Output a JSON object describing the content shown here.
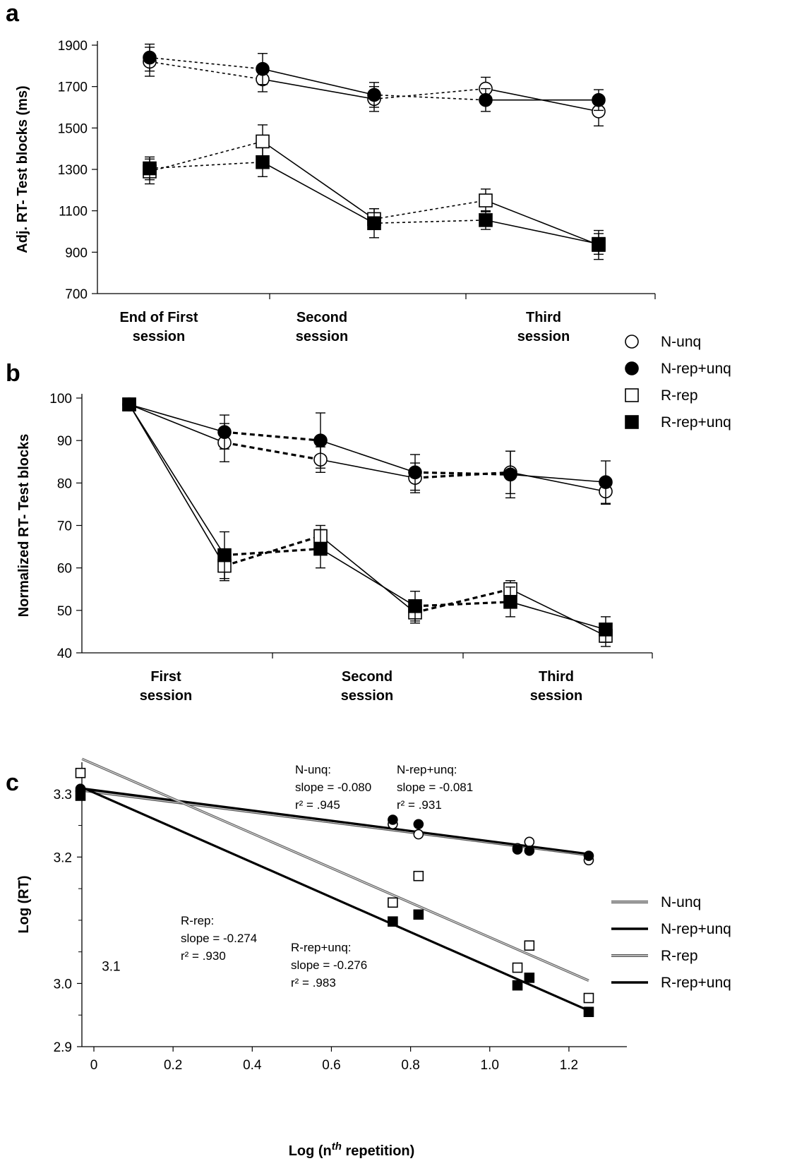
{
  "figure": {
    "panel_a_letter": "a",
    "panel_b_letter": "b",
    "panel_c_letter": "c"
  },
  "legend_ab": [
    {
      "name": "N-unq",
      "marker": "circle",
      "filled": false
    },
    {
      "name": "N-rep+unq",
      "marker": "circle",
      "filled": true
    },
    {
      "name": "R-rep",
      "marker": "square",
      "filled": false
    },
    {
      "name": "R-rep+unq",
      "marker": "square",
      "filled": true
    }
  ],
  "legend_c": [
    {
      "name": "N-unq",
      "style": "double-thin"
    },
    {
      "name": "N-rep+unq",
      "style": "solid-thick"
    },
    {
      "name": "R-rep",
      "style": "double"
    },
    {
      "name": "R-rep+unq",
      "style": "solid-thick"
    }
  ],
  "chart_data": [
    {
      "type": "line",
      "panel": "a",
      "ylabel": "Adj. RT- Test blocks  (ms)",
      "ylim": [
        700,
        1900
      ],
      "yticks": [
        700,
        900,
        1100,
        1300,
        1500,
        1700,
        1900
      ],
      "sessions": [
        "End of First\nsession",
        "Second\nsession",
        "Third\nsession"
      ],
      "series": [
        {
          "name": "N-unq",
          "marker": "circle",
          "filled": false,
          "values": [
            1820,
            1735,
            1640,
            1690,
            1580
          ],
          "err": [
            70,
            60,
            60,
            55,
            70
          ]
        },
        {
          "name": "N-rep+unq",
          "marker": "circle",
          "filled": true,
          "values": [
            1840,
            1785,
            1660,
            1635,
            1635
          ],
          "err": [
            65,
            75,
            60,
            55,
            50
          ]
        },
        {
          "name": "R-rep",
          "marker": "square",
          "filled": false,
          "values": [
            1290,
            1435,
            1060,
            1150,
            935
          ],
          "err": [
            60,
            80,
            50,
            55,
            70
          ]
        },
        {
          "name": "R-rep+unq",
          "marker": "square",
          "filled": true,
          "values": [
            1305,
            1335,
            1040,
            1055,
            940
          ],
          "err": [
            55,
            70,
            70,
            45,
            50
          ]
        }
      ]
    },
    {
      "type": "line",
      "panel": "b",
      "ylabel": "Normalized RT- Test blocks",
      "ylim": [
        40,
        100
      ],
      "yticks": [
        40,
        50,
        60,
        70,
        80,
        90,
        100
      ],
      "sessions": [
        "First\nsession",
        "Second\nsession",
        "Third\nsession"
      ],
      "series": [
        {
          "name": "N-unq",
          "marker": "circle",
          "filled": false,
          "values": [
            98.5,
            89.5,
            85.5,
            81.2,
            82.5,
            78
          ],
          "err": [
            0,
            4.5,
            3,
            3.5,
            5,
            3
          ]
        },
        {
          "name": "N-rep+unq",
          "marker": "circle",
          "filled": true,
          "values": [
            98.5,
            92,
            90,
            82.5,
            82,
            80.2
          ],
          "err": [
            0,
            4,
            6.5,
            4.2,
            5.5,
            5
          ]
        },
        {
          "name": "R-rep",
          "marker": "square",
          "filled": false,
          "values": [
            98.5,
            60.5,
            67.5,
            49.5,
            55,
            44
          ],
          "err": [
            0,
            3.5,
            2.5,
            2.5,
            2,
            2.5
          ]
        },
        {
          "name": "R-rep+unq",
          "marker": "square",
          "filled": true,
          "values": [
            98.5,
            63,
            64.5,
            51,
            52,
            45.5
          ],
          "err": [
            0,
            5.5,
            4.5,
            3.5,
            3.5,
            3
          ]
        }
      ]
    },
    {
      "type": "scatter",
      "panel": "c",
      "xlabel": "Log (n",
      "xlabel_sup": "th",
      "xlabel_end": " repetition)",
      "ylabel": "Log (RT)",
      "xlim": [
        -0.03,
        1.35
      ],
      "ylim": [
        2.9,
        3.35
      ],
      "xticks": [
        0,
        0.2,
        0.4,
        0.6,
        0.8,
        1.0,
        1.2
      ],
      "xtick_labels": [
        "0",
        "0.2",
        "0.4",
        "0.6",
        "0.8",
        "1.0",
        "1.2"
      ],
      "yticks_labeled": [
        2.9,
        3.0,
        3.2,
        3.3
      ],
      "ytick_labels": [
        "2.9",
        "3.0",
        "3.2",
        "3.3"
      ],
      "yticks_minor": [
        2.95,
        3.05,
        3.1,
        3.15,
        3.25
      ],
      "stray_label": {
        "text": "3.1",
        "x": 0.02,
        "y": 3.02
      },
      "series": [
        {
          "name": "N-unq",
          "marker": "circle",
          "filled": false,
          "points": [
            [
              0,
              3.305
            ],
            [
              0.755,
              3.252
            ],
            [
              0.82,
              3.236
            ],
            [
              1.07,
              3.214
            ],
            [
              1.1,
              3.224
            ],
            [
              1.25,
              3.195
            ]
          ],
          "fit": {
            "intercept": 3.303,
            "slope": -0.08
          }
        },
        {
          "name": "N-rep+unq",
          "marker": "circle",
          "filled": true,
          "points": [
            [
              0,
              3.308
            ],
            [
              0.755,
              3.259
            ],
            [
              0.82,
              3.252
            ],
            [
              1.07,
              3.212
            ],
            [
              1.1,
              3.21
            ],
            [
              1.25,
              3.202
            ]
          ],
          "fit": {
            "intercept": 3.306,
            "slope": -0.081
          }
        },
        {
          "name": "R-rep",
          "marker": "square",
          "filled": false,
          "points": [
            [
              0,
              3.333
            ],
            [
              0.755,
              3.128
            ],
            [
              0.82,
              3.17
            ],
            [
              1.07,
              3.025
            ],
            [
              1.1,
              3.06
            ],
            [
              1.25,
              2.977
            ]
          ],
          "fit": {
            "intercept": 3.347,
            "slope": -0.274
          }
        },
        {
          "name": "R-rep+unq",
          "marker": "square",
          "filled": true,
          "points": [
            [
              0,
              3.297
            ],
            [
              0.755,
              3.098
            ],
            [
              0.82,
              3.109
            ],
            [
              1.07,
              2.997
            ],
            [
              1.1,
              3.009
            ],
            [
              1.25,
              2.955
            ]
          ],
          "fit": {
            "intercept": 3.302,
            "slope": -0.276
          }
        }
      ],
      "annotations": [
        {
          "lines": [
            "N-unq:",
            "slope = -0.080",
            "r² = .945"
          ]
        },
        {
          "lines": [
            "N-rep+unq:",
            " slope = -0.081",
            "r² = .931"
          ]
        },
        {
          "lines": [
            "R-rep:",
            " slope = -0.274",
            "r² = .930"
          ]
        },
        {
          "lines": [
            "R-rep+unq:",
            "slope = -0.276",
            "r² = .983"
          ]
        }
      ]
    }
  ]
}
